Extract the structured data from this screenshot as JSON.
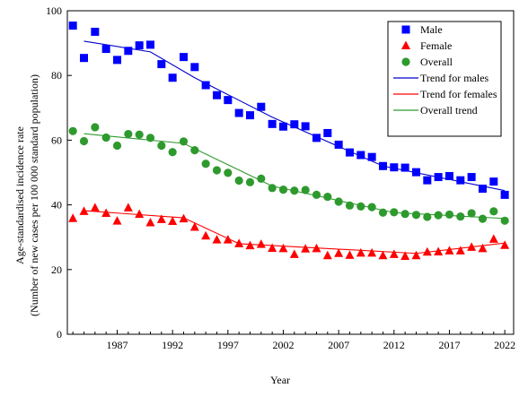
{
  "chart_data": {
    "type": "scatter",
    "title": "",
    "xlabel": "Year",
    "ylabel": "Age-standardised incidence rate",
    "ylabel2": "(Number of new cases per 100 000 standard population)",
    "xlim": [
      1982.5,
      2022.8
    ],
    "ylim": [
      0,
      100
    ],
    "xticks": [
      1987,
      1992,
      1997,
      2002,
      2007,
      2012,
      2017,
      2022
    ],
    "yticks": [
      0,
      20,
      40,
      60,
      80,
      100
    ],
    "grid": false,
    "legend_position": "top-right",
    "x": [
      1983,
      1984,
      1985,
      1986,
      1987,
      1988,
      1989,
      1990,
      1991,
      1992,
      1993,
      1994,
      1995,
      1996,
      1997,
      1998,
      1999,
      2000,
      2001,
      2002,
      2003,
      2004,
      2005,
      2006,
      2007,
      2008,
      2009,
      2010,
      2011,
      2012,
      2013,
      2014,
      2015,
      2016,
      2017,
      2018,
      2019,
      2020,
      2021,
      2022
    ],
    "series": [
      {
        "name": "Male",
        "kind": "points",
        "marker": "square",
        "color": "#0000ff",
        "values": [
          95.4,
          85.4,
          93.5,
          88.2,
          84.8,
          87.6,
          89.3,
          89.5,
          83.5,
          79.3,
          85.7,
          82.6,
          77.0,
          73.9,
          72.4,
          68.4,
          67.7,
          70.3,
          65.0,
          64.2,
          64.9,
          64.3,
          60.7,
          62.2,
          58.6,
          56.2,
          55.4,
          54.8,
          52.0,
          51.6,
          51.5,
          50.1,
          47.6,
          48.6,
          48.9,
          47.6,
          48.6,
          45.0,
          47.2,
          43.1
        ]
      },
      {
        "name": "Female",
        "kind": "points",
        "marker": "triangle",
        "color": "#ff0000",
        "values": [
          35.8,
          38.0,
          39.1,
          37.4,
          35.0,
          39.1,
          37.1,
          34.5,
          35.5,
          34.9,
          35.7,
          33.1,
          30.4,
          29.2,
          29.2,
          28.0,
          27.4,
          27.8,
          26.6,
          26.5,
          24.7,
          26.4,
          26.5,
          24.3,
          25.0,
          24.4,
          25.1,
          25.1,
          24.3,
          24.7,
          24.1,
          24.3,
          25.4,
          25.5,
          25.8,
          25.8,
          26.9,
          26.5,
          29.4,
          27.5
        ]
      },
      {
        "name": "Overall",
        "kind": "points",
        "marker": "circle",
        "color": "#2e9a2e",
        "values": [
          62.8,
          59.7,
          64.0,
          60.8,
          58.3,
          61.9,
          61.7,
          60.7,
          58.3,
          56.3,
          59.6,
          56.9,
          52.7,
          50.7,
          49.9,
          47.5,
          47.0,
          48.1,
          45.2,
          44.7,
          44.4,
          44.6,
          43.1,
          42.5,
          41.0,
          39.8,
          39.5,
          39.3,
          37.6,
          37.7,
          37.2,
          36.9,
          36.3,
          36.8,
          37.0,
          36.4,
          37.4,
          35.7,
          38.0,
          35.1
        ]
      },
      {
        "name": "Trend for males",
        "kind": "line",
        "color": "#0000cc",
        "x": [
          1984,
          1990,
          1994,
          2001,
          2011,
          2022
        ],
        "values": [
          90.6,
          87.3,
          79.3,
          67.1,
          52.0,
          44.4
        ]
      },
      {
        "name": "Trend for females",
        "kind": "line",
        "color": "#ff0000",
        "x": [
          1984,
          1993,
          1998,
          2014,
          2022
        ],
        "values": [
          38.2,
          36.0,
          28.0,
          25.0,
          28.2
        ]
      },
      {
        "name": "Overall trend",
        "kind": "line",
        "color": "#2e9a2e",
        "x": [
          1984,
          1993,
          2001,
          2012,
          2022
        ],
        "values": [
          62.0,
          59.0,
          45.8,
          37.6,
          35.8
        ]
      }
    ]
  }
}
